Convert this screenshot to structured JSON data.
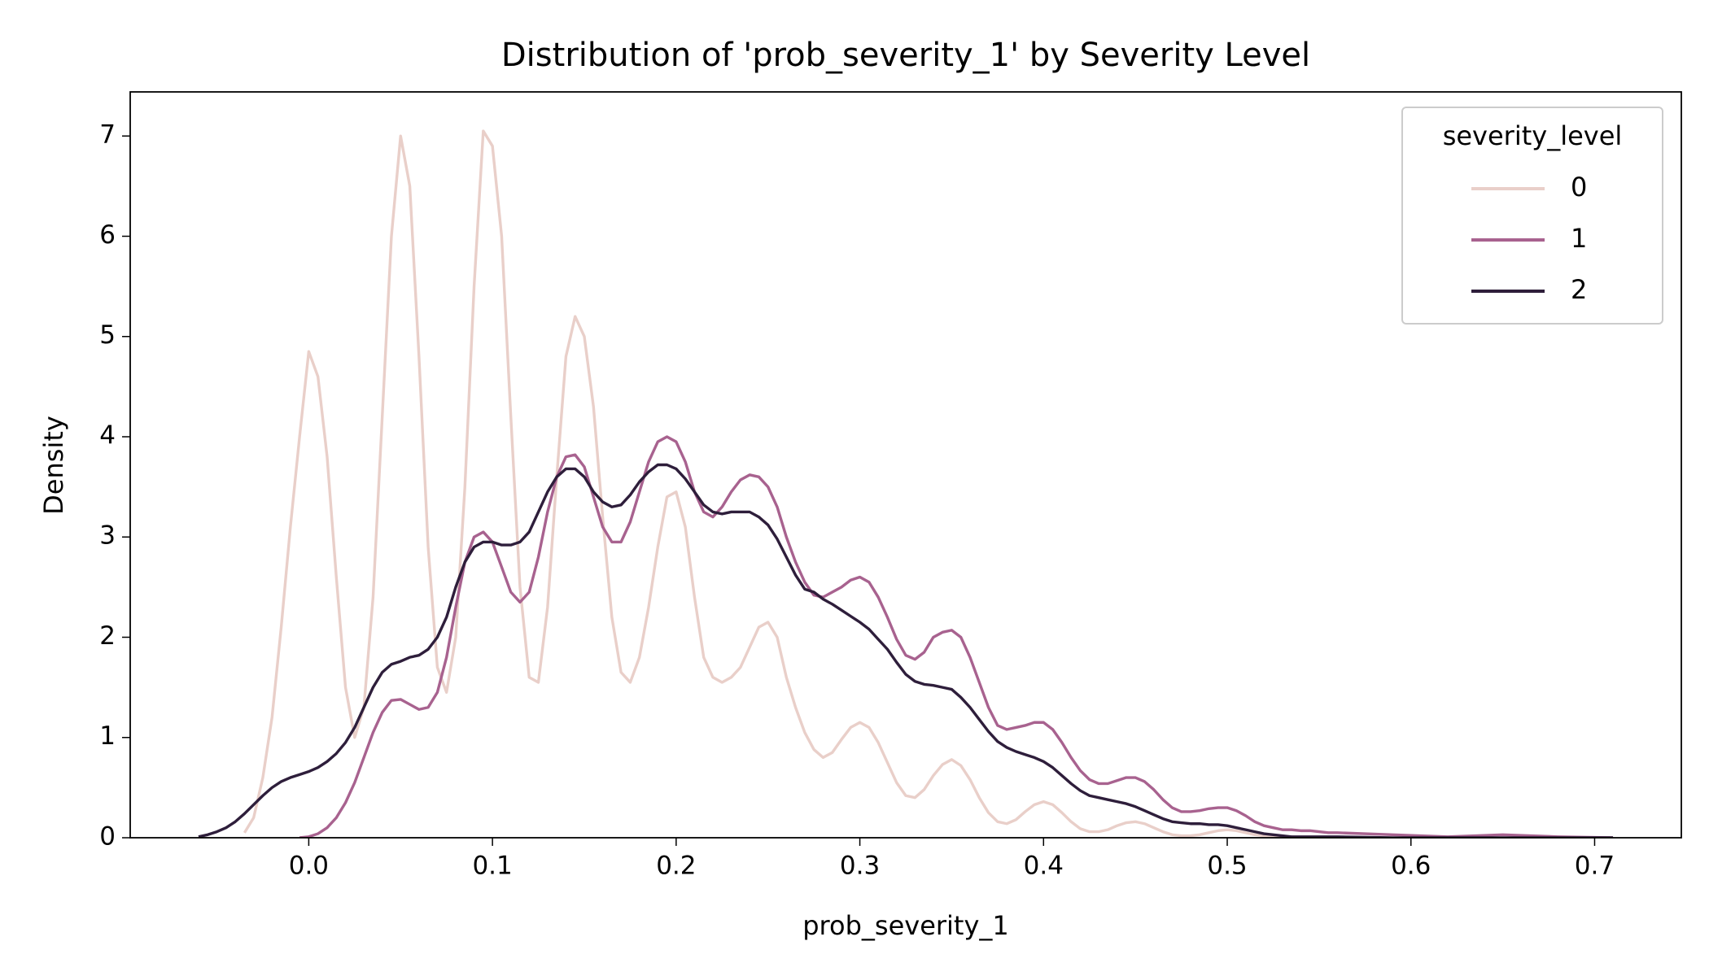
{
  "chart_data": {
    "type": "line",
    "title": "Distribution of 'prob_severity_1' by Severity Level",
    "xlabel": "prob_severity_1",
    "ylabel": "Density",
    "legend_title": "severity_level",
    "legend_position": "upper right",
    "xlim": [
      -0.0972,
      0.7472
    ],
    "ylim": [
      0,
      7.44
    ],
    "xticks": [
      {
        "value": 0,
        "label": "0.0"
      },
      0.1,
      0.2,
      0.3,
      0.4,
      0.5,
      0.6,
      0.7
    ],
    "yticks": [
      0,
      1,
      2,
      3,
      4,
      5,
      6,
      7
    ],
    "x": [
      -0.06,
      -0.055,
      -0.05,
      -0.045,
      -0.04,
      -0.035,
      -0.03,
      -0.025,
      -0.02,
      -0.015,
      -0.01,
      -0.005,
      0,
      0.005,
      0.01,
      0.015,
      0.02,
      0.025,
      0.03,
      0.035,
      0.04,
      0.045,
      0.05,
      0.055,
      0.06,
      0.065,
      0.07,
      0.075,
      0.08,
      0.085,
      0.09,
      0.095,
      0.1,
      0.105,
      0.11,
      0.115,
      0.12,
      0.125,
      0.13,
      0.135,
      0.14,
      0.145,
      0.15,
      0.155,
      0.16,
      0.165,
      0.17,
      0.175,
      0.18,
      0.185,
      0.19,
      0.195,
      0.2,
      0.205,
      0.21,
      0.215,
      0.22,
      0.225,
      0.23,
      0.235,
      0.24,
      0.245,
      0.25,
      0.255,
      0.26,
      0.265,
      0.27,
      0.275,
      0.28,
      0.285,
      0.29,
      0.295,
      0.3,
      0.305,
      0.31,
      0.315,
      0.32,
      0.325,
      0.33,
      0.335,
      0.34,
      0.345,
      0.35,
      0.355,
      0.36,
      0.365,
      0.37,
      0.375,
      0.38,
      0.385,
      0.39,
      0.395,
      0.4,
      0.405,
      0.41,
      0.415,
      0.42,
      0.425,
      0.43,
      0.435,
      0.44,
      0.445,
      0.45,
      0.455,
      0.46,
      0.465,
      0.47,
      0.475,
      0.48,
      0.485,
      0.49,
      0.495,
      0.5,
      0.505,
      0.51,
      0.515,
      0.52,
      0.525,
      0.53,
      0.535,
      0.54,
      0.545,
      0.55,
      0.555,
      0.56,
      0.59,
      0.62,
      0.65,
      0.68,
      0.71
    ],
    "series": [
      {
        "name": "0",
        "color": "#e9cfc9",
        "values": [
          null,
          null,
          null,
          null,
          null,
          0.05,
          0.2,
          0.6,
          1.2,
          2.1,
          3.1,
          4.0,
          4.85,
          4.6,
          3.8,
          2.6,
          1.5,
          1.0,
          1.3,
          2.4,
          4.2,
          6.0,
          7.0,
          6.5,
          4.8,
          2.9,
          1.7,
          1.45,
          2.0,
          3.5,
          5.5,
          7.05,
          6.9,
          6.0,
          4.2,
          2.5,
          1.6,
          1.55,
          2.3,
          3.6,
          4.8,
          5.2,
          5.0,
          4.3,
          3.2,
          2.2,
          1.65,
          1.55,
          1.8,
          2.3,
          2.9,
          3.4,
          3.45,
          3.1,
          2.4,
          1.8,
          1.6,
          1.55,
          1.6,
          1.7,
          1.9,
          2.1,
          2.15,
          2.0,
          1.6,
          1.3,
          1.05,
          0.88,
          0.8,
          0.85,
          0.98,
          1.1,
          1.15,
          1.1,
          0.95,
          0.75,
          0.55,
          0.42,
          0.4,
          0.48,
          0.62,
          0.73,
          0.78,
          0.72,
          0.58,
          0.4,
          0.25,
          0.16,
          0.14,
          0.18,
          0.26,
          0.33,
          0.36,
          0.33,
          0.25,
          0.16,
          0.09,
          0.06,
          0.06,
          0.08,
          0.12,
          0.15,
          0.16,
          0.14,
          0.1,
          0.06,
          0.03,
          0.02,
          0.02,
          0.03,
          0.05,
          0.07,
          0.08,
          0.07,
          0.05,
          0.03,
          0.02,
          0.01,
          0.01,
          0.01,
          0,
          0,
          0,
          0,
          0,
          null,
          null,
          null,
          null,
          null
        ]
      },
      {
        "name": "1",
        "color": "#a8628f",
        "values": [
          null,
          null,
          null,
          null,
          null,
          null,
          null,
          null,
          null,
          null,
          null,
          0,
          0.01,
          0.04,
          0.1,
          0.2,
          0.35,
          0.55,
          0.8,
          1.05,
          1.25,
          1.37,
          1.38,
          1.33,
          1.28,
          1.3,
          1.45,
          1.8,
          2.3,
          2.75,
          3.0,
          3.05,
          2.95,
          2.7,
          2.45,
          2.35,
          2.45,
          2.8,
          3.25,
          3.6,
          3.8,
          3.82,
          3.7,
          3.4,
          3.1,
          2.95,
          2.95,
          3.15,
          3.45,
          3.75,
          3.95,
          4.0,
          3.95,
          3.75,
          3.45,
          3.25,
          3.2,
          3.3,
          3.45,
          3.57,
          3.62,
          3.6,
          3.5,
          3.3,
          3.0,
          2.75,
          2.55,
          2.42,
          2.4,
          2.45,
          2.5,
          2.57,
          2.6,
          2.55,
          2.4,
          2.2,
          1.98,
          1.82,
          1.78,
          1.85,
          2.0,
          2.05,
          2.07,
          2.0,
          1.8,
          1.55,
          1.3,
          1.12,
          1.08,
          1.1,
          1.12,
          1.15,
          1.15,
          1.08,
          0.95,
          0.8,
          0.67,
          0.58,
          0.54,
          0.54,
          0.57,
          0.6,
          0.6,
          0.56,
          0.48,
          0.38,
          0.3,
          0.26,
          0.26,
          0.27,
          0.29,
          0.3,
          0.3,
          0.27,
          0.22,
          0.16,
          0.12,
          0.1,
          0.08,
          0.08,
          0.07,
          0.07,
          0.06,
          0.05,
          0.05,
          0.03,
          0.01,
          0.03,
          0.01,
          0
        ]
      },
      {
        "name": "2",
        "color": "#2e1e3b",
        "values": [
          0.01,
          0.03,
          0.06,
          0.1,
          0.16,
          0.24,
          0.33,
          0.42,
          0.5,
          0.56,
          0.6,
          0.63,
          0.66,
          0.7,
          0.76,
          0.84,
          0.95,
          1.1,
          1.3,
          1.5,
          1.65,
          1.73,
          1.76,
          1.8,
          1.82,
          1.88,
          2.0,
          2.2,
          2.5,
          2.75,
          2.9,
          2.95,
          2.95,
          2.92,
          2.92,
          2.95,
          3.05,
          3.25,
          3.45,
          3.6,
          3.68,
          3.68,
          3.6,
          3.45,
          3.35,
          3.3,
          3.32,
          3.42,
          3.55,
          3.65,
          3.72,
          3.72,
          3.68,
          3.58,
          3.45,
          3.32,
          3.25,
          3.23,
          3.25,
          3.25,
          3.25,
          3.2,
          3.12,
          2.98,
          2.8,
          2.62,
          2.48,
          2.45,
          2.38,
          2.33,
          2.27,
          2.21,
          2.15,
          2.08,
          1.98,
          1.88,
          1.75,
          1.63,
          1.56,
          1.53,
          1.52,
          1.5,
          1.48,
          1.4,
          1.3,
          1.18,
          1.06,
          0.96,
          0.9,
          0.86,
          0.83,
          0.8,
          0.76,
          0.7,
          0.62,
          0.54,
          0.47,
          0.42,
          0.4,
          0.38,
          0.36,
          0.34,
          0.31,
          0.27,
          0.23,
          0.19,
          0.16,
          0.15,
          0.14,
          0.14,
          0.13,
          0.13,
          0.12,
          0.1,
          0.08,
          0.06,
          0.04,
          0.03,
          0.02,
          0.01,
          0.01,
          0.01,
          0.01,
          0.01,
          0.01,
          0,
          0,
          0,
          0,
          0
        ]
      }
    ]
  }
}
